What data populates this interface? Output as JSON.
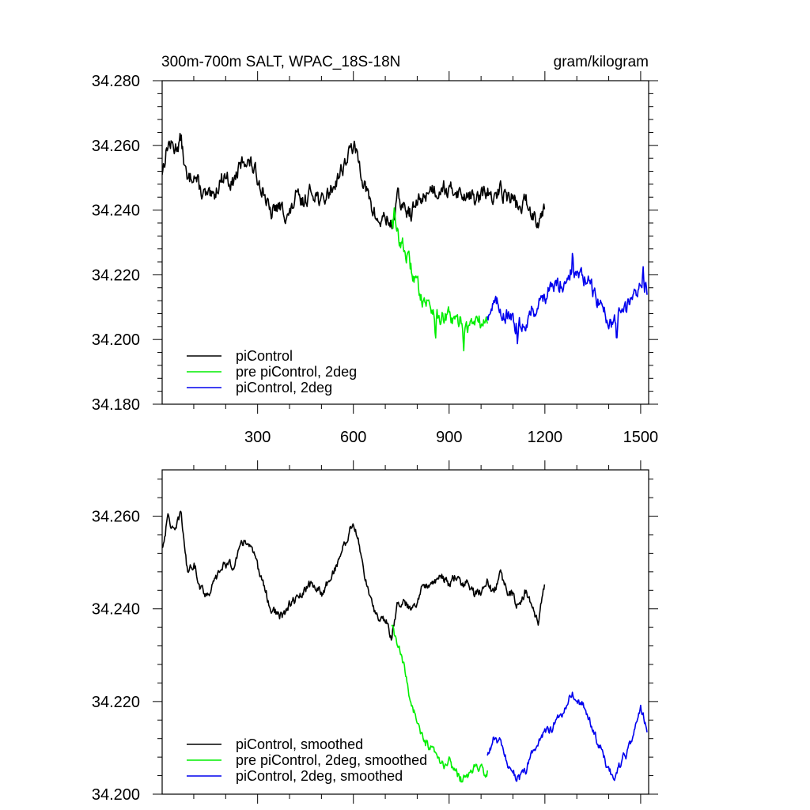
{
  "chart_data": [
    {
      "type": "line",
      "title": "300m-700m SALT, WPAC_18S-18N",
      "units": "gram/kilogram",
      "xlim": [
        1,
        1525
      ],
      "ylim": [
        34.18,
        34.28
      ],
      "xticks": [
        300,
        600,
        900,
        1200,
        1500
      ],
      "xtick_labels": [
        "300",
        "600",
        "900",
        "1200",
        "1500"
      ],
      "yticks": [
        34.18,
        34.2,
        34.22,
        34.24,
        34.26,
        34.28
      ],
      "ytick_labels": [
        "34.180",
        "34.200",
        "34.220",
        "34.240",
        "34.260",
        "34.280"
      ],
      "legend_position": "bottom-left",
      "grid": false,
      "series": [
        {
          "name": "piControl",
          "color": "#000000",
          "x": [
            1,
            20,
            40,
            60,
            80,
            100,
            120,
            140,
            160,
            180,
            200,
            220,
            240,
            260,
            280,
            300,
            320,
            340,
            360,
            380,
            400,
            420,
            440,
            460,
            480,
            500,
            520,
            540,
            560,
            580,
            600,
            620,
            640,
            660,
            680,
            700,
            720,
            740,
            760,
            780,
            800,
            820,
            840,
            860,
            880,
            900,
            920,
            940,
            960,
            980,
            1000,
            1020,
            1040,
            1060,
            1080,
            1100,
            1120,
            1140,
            1160,
            1180,
            1200
          ],
          "y": [
            34.252,
            34.261,
            34.259,
            34.262,
            34.248,
            34.252,
            34.246,
            34.244,
            34.243,
            34.249,
            34.251,
            34.248,
            34.252,
            34.256,
            34.254,
            34.25,
            34.246,
            34.238,
            34.241,
            34.24,
            34.238,
            34.244,
            34.242,
            34.245,
            34.246,
            34.242,
            34.245,
            34.248,
            34.252,
            34.256,
            34.26,
            34.254,
            34.246,
            34.24,
            34.236,
            34.238,
            34.235,
            34.244,
            34.24,
            34.239,
            34.242,
            34.244,
            34.247,
            34.246,
            34.248,
            34.245,
            34.247,
            34.244,
            34.246,
            34.243,
            34.244,
            34.246,
            34.242,
            34.247,
            34.244,
            34.244,
            34.24,
            34.243,
            34.239,
            34.237,
            34.242
          ]
        },
        {
          "name": "pre piControl, 2deg",
          "color": "#00ee00",
          "x": [
            720,
            740,
            760,
            780,
            800,
            820,
            840,
            860,
            880,
            900,
            920,
            940,
            960,
            980,
            1000,
            1020
          ],
          "y": [
            34.238,
            34.232,
            34.228,
            34.222,
            34.217,
            34.212,
            34.211,
            34.208,
            34.206,
            34.207,
            34.205,
            34.206,
            34.204,
            34.206,
            34.205,
            34.206
          ],
          "peaks": [
            [
              728,
              34.24
            ],
            [
              820,
              34.214
            ],
            [
              858,
              34.2
            ],
            [
              946,
              34.198
            ]
          ]
        },
        {
          "name": "piControl, 2deg",
          "color": "#0000ee",
          "x": [
            1020,
            1040,
            1060,
            1080,
            1100,
            1120,
            1140,
            1160,
            1180,
            1200,
            1220,
            1240,
            1260,
            1280,
            1300,
            1320,
            1340,
            1360,
            1380,
            1400,
            1420,
            1440,
            1460,
            1480,
            1500,
            1520
          ],
          "y": [
            34.208,
            34.211,
            34.21,
            34.207,
            34.205,
            34.204,
            34.206,
            34.209,
            34.211,
            34.214,
            34.215,
            34.217,
            34.218,
            34.221,
            34.22,
            34.219,
            34.217,
            34.213,
            34.21,
            34.206,
            34.205,
            34.209,
            34.21,
            34.214,
            34.218,
            34.215
          ],
          "peaks": [
            [
              1115,
              34.2
            ],
            [
              1287,
              34.227
            ],
            [
              1425,
              34.201
            ],
            [
              1508,
              34.224
            ]
          ]
        }
      ]
    },
    {
      "type": "line",
      "title": "",
      "xlim": [
        1,
        1525
      ],
      "ylim": [
        34.2,
        34.27
      ],
      "xticks": [
        300,
        600,
        900,
        1200,
        1500
      ],
      "xtick_labels": [],
      "yticks": [
        34.2,
        34.22,
        34.24,
        34.26
      ],
      "ytick_labels": [
        "34.200",
        "34.220",
        "34.240",
        "34.260"
      ],
      "legend_position": "bottom-left",
      "grid": false,
      "series": [
        {
          "name": "piControl, smoothed",
          "color": "#000000",
          "x": [
            1,
            20,
            40,
            60,
            80,
            100,
            120,
            140,
            160,
            180,
            200,
            220,
            240,
            260,
            280,
            300,
            320,
            340,
            360,
            380,
            400,
            420,
            440,
            460,
            480,
            500,
            520,
            540,
            560,
            580,
            600,
            620,
            640,
            660,
            680,
            700,
            720,
            740,
            760,
            780,
            800,
            820,
            840,
            860,
            880,
            900,
            920,
            940,
            960,
            980,
            1000,
            1020,
            1040,
            1060,
            1080,
            1100,
            1120,
            1140,
            1160,
            1180,
            1200
          ],
          "y": [
            34.253,
            34.26,
            34.256,
            34.261,
            34.248,
            34.25,
            34.245,
            34.243,
            34.245,
            34.248,
            34.25,
            34.249,
            34.252,
            34.255,
            34.253,
            34.249,
            34.245,
            34.24,
            34.239,
            34.238,
            34.241,
            34.242,
            34.243,
            34.245,
            34.245,
            34.243,
            34.246,
            34.248,
            34.252,
            34.255,
            34.259,
            34.253,
            34.246,
            34.24,
            34.238,
            34.238,
            34.234,
            34.242,
            34.241,
            34.24,
            34.242,
            34.245,
            34.246,
            34.246,
            34.247,
            34.245,
            34.247,
            34.245,
            34.246,
            34.243,
            34.244,
            34.246,
            34.243,
            34.248,
            34.244,
            34.243,
            34.24,
            34.244,
            34.24,
            34.237,
            34.246
          ]
        },
        {
          "name": "pre piControl, 2deg, smoothed",
          "color": "#00ee00",
          "x": [
            720,
            740,
            760,
            780,
            800,
            820,
            840,
            860,
            880,
            900,
            920,
            940,
            960,
            980,
            1000,
            1020
          ],
          "y": [
            34.236,
            34.232,
            34.227,
            34.22,
            34.216,
            34.211,
            34.21,
            34.208,
            34.206,
            34.207,
            34.205,
            34.203,
            34.204,
            34.206,
            34.205,
            34.205
          ]
        },
        {
          "name": "piControl, 2deg, smoothed",
          "color": "#0000ee",
          "x": [
            1020,
            1040,
            1060,
            1080,
            1100,
            1120,
            1140,
            1160,
            1180,
            1200,
            1220,
            1240,
            1260,
            1280,
            1300,
            1320,
            1340,
            1360,
            1380,
            1400,
            1420,
            1440,
            1460,
            1480,
            1500,
            1520
          ],
          "y": [
            34.208,
            34.212,
            34.211,
            34.207,
            34.205,
            34.203,
            34.205,
            34.209,
            34.211,
            34.214,
            34.214,
            34.216,
            34.218,
            34.222,
            34.221,
            34.219,
            34.216,
            34.212,
            34.209,
            34.205,
            34.204,
            34.207,
            34.209,
            34.213,
            34.219,
            34.214
          ]
        }
      ]
    }
  ]
}
